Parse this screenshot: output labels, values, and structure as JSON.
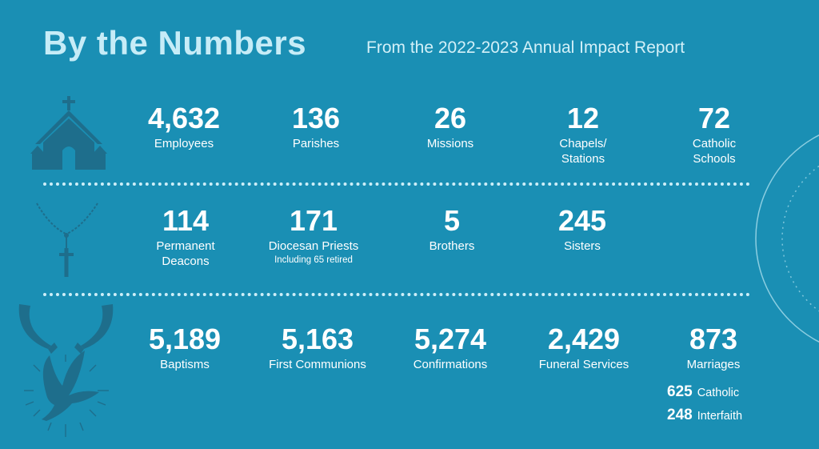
{
  "header": {
    "title": "By the Numbers",
    "subtitle": "From the 2022-2023 Annual Impact Report"
  },
  "colors": {
    "background": "#1a8fb4",
    "icon": "#1e6e8c",
    "title": "#c6ecf7",
    "divider": "#cdeef8"
  },
  "rows": [
    {
      "icon": "church-icon",
      "stats": [
        {
          "value": "4,632",
          "label": "Employees"
        },
        {
          "value": "136",
          "label": "Parishes"
        },
        {
          "value": "26",
          "label": "Missions"
        },
        {
          "value": "12",
          "label": "Chapels/\nStations"
        },
        {
          "value": "72",
          "label": "Catholic\nSchools"
        }
      ]
    },
    {
      "icon": "rosary-icon",
      "stats": [
        {
          "value": "114",
          "label": "Permanent\nDeacons"
        },
        {
          "value": "171",
          "label": "Diocesan Priests",
          "note": "Including 65 retired"
        },
        {
          "value": "5",
          "label": "Brothers"
        },
        {
          "value": "245",
          "label": "Sisters"
        }
      ]
    },
    {
      "icon": "hands-dove-icon",
      "stats": [
        {
          "value": "5,189",
          "label": "Baptisms"
        },
        {
          "value": "5,163",
          "label": "First Communions"
        },
        {
          "value": "5,274",
          "label": "Confirmations"
        },
        {
          "value": "2,429",
          "label": "Funeral Services"
        },
        {
          "value": "873",
          "label": "Marriages"
        }
      ]
    }
  ],
  "marriage_breakdown": [
    {
      "value": "625",
      "label": "Catholic"
    },
    {
      "value": "248",
      "label": "Interfaith"
    }
  ]
}
